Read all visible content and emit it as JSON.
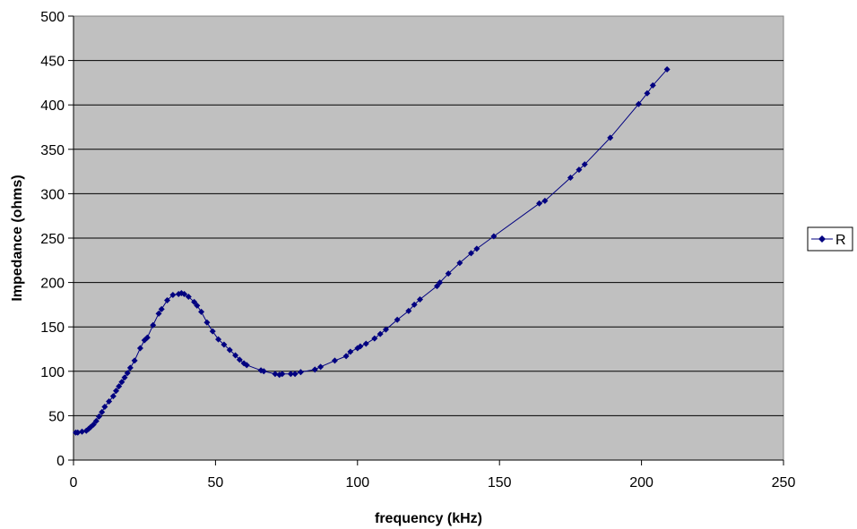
{
  "chart_data": {
    "type": "line",
    "title": "",
    "xlabel": "frequency (kHz)",
    "ylabel": "Impedance (ohms)",
    "xlim": [
      0,
      250
    ],
    "ylim": [
      0,
      500
    ],
    "xticks": [
      0,
      50,
      100,
      150,
      200,
      250
    ],
    "yticks": [
      0,
      50,
      100,
      150,
      200,
      250,
      300,
      350,
      400,
      450,
      500
    ],
    "grid": "horizontal",
    "plot_background": "#c0c0c0",
    "legend_position": "right",
    "series": [
      {
        "name": "R",
        "color": "#000080",
        "marker": "diamond",
        "x": [
          0.8,
          1.5,
          3.0,
          4.5,
          5.3,
          6.0,
          7.0,
          8.0,
          9.0,
          10.0,
          11.0,
          12.5,
          14.0,
          15.0,
          16.0,
          17.0,
          18.0,
          19.0,
          20.0,
          21.5,
          23.5,
          25.0,
          26.0,
          28.0,
          30.0,
          31.0,
          33.0,
          35.0,
          37.0,
          38.0,
          39.0,
          40.5,
          42.5,
          43.5,
          45.0,
          47.0,
          49.0,
          51.0,
          53.0,
          55.0,
          57.0,
          58.5,
          60.0,
          61.0,
          66.0,
          67.0,
          71.0,
          72.5,
          73.5,
          76.5,
          78.0,
          80.0,
          85.0,
          87.0,
          92.0,
          96.0,
          97.5,
          100.0,
          101.0,
          103.0,
          106.0,
          108.0,
          110.0,
          114.0,
          118.0,
          120.0,
          122.0,
          128.0,
          129.0,
          132.0,
          136.0,
          140.0,
          142.0,
          148.0,
          164.0,
          166.0,
          175.0,
          178.0,
          180.0,
          189.0,
          199.0,
          202.0,
          204.0,
          209.0
        ],
        "y": [
          31,
          31,
          32,
          33,
          35,
          37,
          40,
          44,
          49,
          54,
          60,
          66,
          72,
          78,
          83,
          88,
          93,
          98,
          104,
          112,
          126,
          135,
          138,
          152,
          165,
          170,
          180,
          186,
          187,
          188,
          187,
          184,
          178,
          174,
          167,
          155,
          145,
          136,
          130,
          124,
          118,
          113,
          109,
          107,
          101,
          100,
          97,
          96,
          97,
          97,
          97,
          99,
          102,
          105,
          112,
          117,
          122,
          126,
          128,
          131,
          137,
          142,
          147,
          158,
          168,
          175,
          181,
          196,
          200,
          210,
          222,
          233,
          238,
          252,
          289,
          292,
          318,
          327,
          333,
          363,
          401,
          413,
          422,
          440
        ]
      }
    ]
  },
  "legend": {
    "items": [
      {
        "label": "R"
      }
    ]
  }
}
